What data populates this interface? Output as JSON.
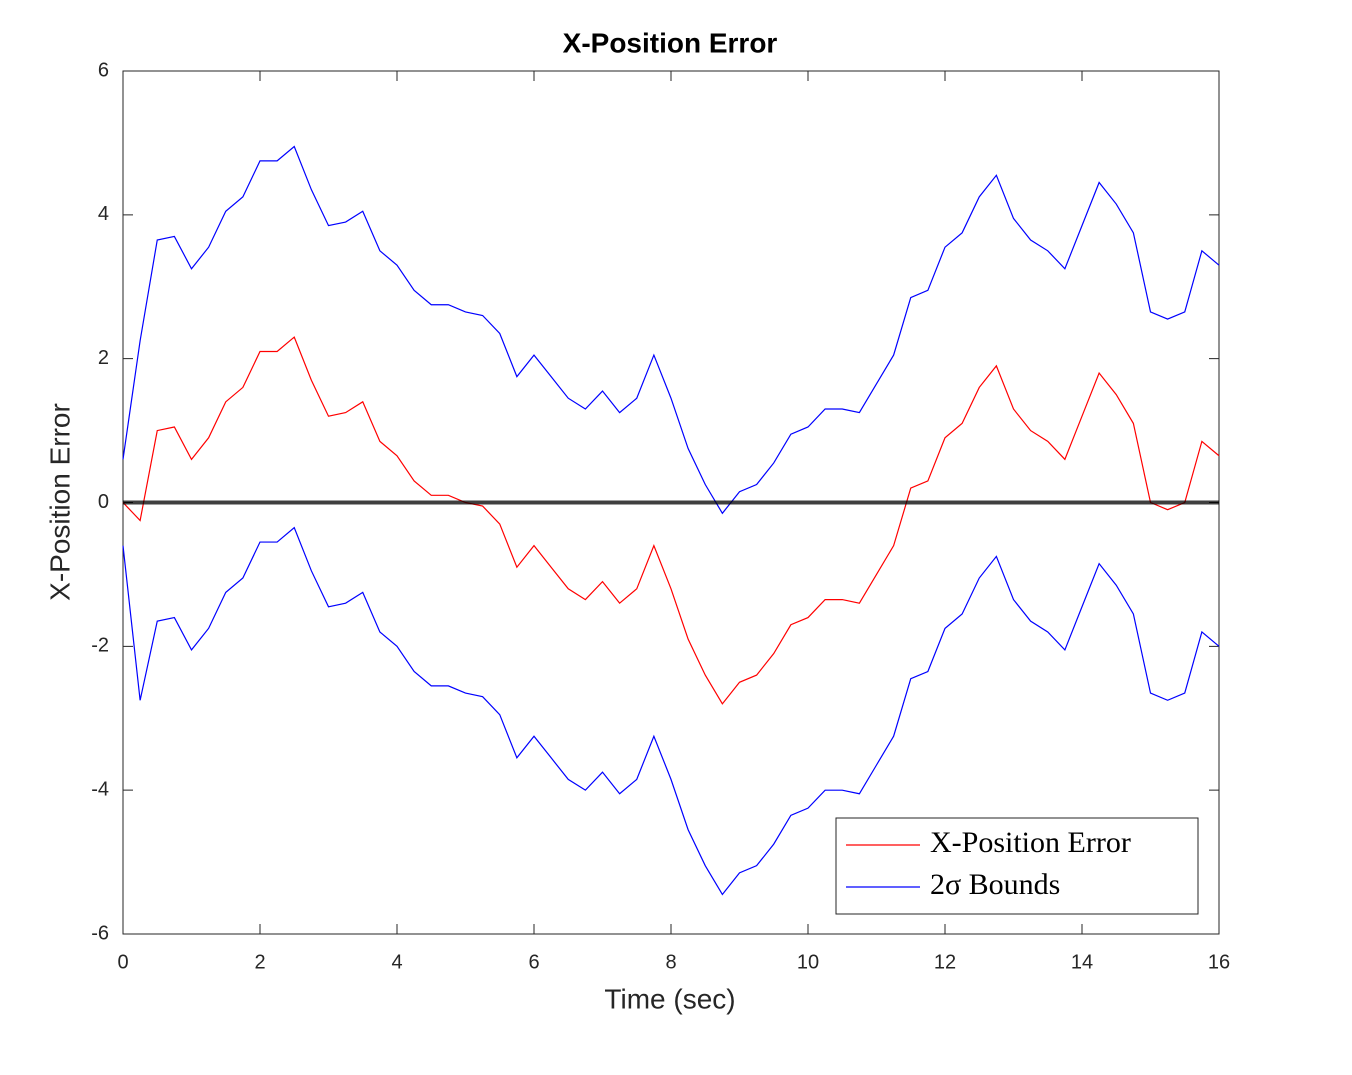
{
  "chart_data": {
    "type": "line",
    "title": "X-Position Error",
    "x_label": "Time (sec)",
    "y_label": "X-Position Error",
    "x": [
      0,
      0.25,
      0.5,
      0.75,
      1,
      1.25,
      1.5,
      1.75,
      2,
      2.25,
      2.5,
      2.75,
      3,
      3.25,
      3.5,
      3.75,
      4,
      4.25,
      4.5,
      4.75,
      5,
      5.25,
      5.5,
      5.75,
      6,
      6.25,
      6.5,
      6.75,
      7,
      7.25,
      7.5,
      7.75,
      8,
      8.25,
      8.5,
      8.75,
      9,
      9.25,
      9.5,
      9.75,
      10,
      10.25,
      10.5,
      10.75,
      11,
      11.25,
      11.5,
      11.75,
      12,
      12.25,
      12.5,
      12.75,
      13,
      13.25,
      13.5,
      13.75,
      14,
      14.25,
      14.5,
      14.75,
      15,
      15.25,
      15.5,
      15.75,
      16
    ],
    "series": [
      {
        "name": "X-Position Error",
        "color": "#ff0000",
        "values": [
          0,
          -0.25,
          1.0,
          1.05,
          0.6,
          0.9,
          1.4,
          1.6,
          2.1,
          2.1,
          2.3,
          1.7,
          1.2,
          1.25,
          1.4,
          0.85,
          0.65,
          0.3,
          0.1,
          0.1,
          0.0,
          -0.05,
          -0.3,
          -0.9,
          -0.6,
          -0.9,
          -1.2,
          -1.35,
          -1.1,
          -1.4,
          -1.2,
          -0.6,
          -1.2,
          -1.9,
          -2.4,
          -2.8,
          -2.5,
          -2.4,
          -2.1,
          -1.7,
          -1.6,
          -1.35,
          -1.35,
          -1.4,
          -1.0,
          -0.6,
          0.2,
          0.3,
          0.9,
          1.1,
          1.6,
          1.9,
          1.3,
          1.0,
          0.85,
          0.6,
          1.2,
          1.8,
          1.5,
          1.1,
          0.0,
          -0.1,
          0.0,
          0.85,
          0.65
        ]
      },
      {
        "name": "2σ Bounds",
        "color": "#0000ff",
        "values": [
          0.6,
          2.25,
          3.65,
          3.7,
          3.25,
          3.55,
          4.05,
          4.25,
          4.75,
          4.75,
          4.95,
          4.35,
          3.85,
          3.9,
          4.05,
          3.5,
          3.3,
          2.95,
          2.75,
          2.75,
          2.65,
          2.6,
          2.35,
          1.75,
          2.05,
          1.75,
          1.45,
          1.3,
          1.55,
          1.25,
          1.45,
          2.05,
          1.45,
          0.75,
          0.25,
          -0.15,
          0.15,
          0.25,
          0.55,
          0.95,
          1.05,
          1.3,
          1.3,
          1.25,
          1.65,
          2.05,
          2.85,
          2.95,
          3.55,
          3.75,
          4.25,
          4.55,
          3.95,
          3.65,
          3.5,
          3.25,
          3.85,
          4.45,
          4.15,
          3.75,
          2.65,
          2.55,
          2.65,
          3.5,
          3.3
        ],
        "lower": [
          -0.6,
          -2.75,
          -1.65,
          -1.6,
          -2.05,
          -1.75,
          -1.25,
          -1.05,
          -0.55,
          -0.55,
          -0.35,
          -0.95,
          -1.45,
          -1.4,
          -1.25,
          -1.8,
          -2.0,
          -2.35,
          -2.55,
          -2.55,
          -2.65,
          -2.7,
          -2.95,
          -3.55,
          -3.25,
          -3.55,
          -3.85,
          -4.0,
          -3.75,
          -4.05,
          -3.85,
          -3.25,
          -3.85,
          -4.55,
          -5.05,
          -5.45,
          -5.15,
          -5.05,
          -4.75,
          -4.35,
          -4.25,
          -4.0,
          -4.0,
          -4.05,
          -3.65,
          -3.25,
          -2.45,
          -2.35,
          -1.75,
          -1.55,
          -1.05,
          -0.75,
          -1.35,
          -1.65,
          -1.8,
          -2.05,
          -1.45,
          -0.85,
          -1.15,
          -1.55,
          -2.65,
          -2.75,
          -2.65,
          -1.8,
          -2.0
        ]
      }
    ],
    "hline": 0,
    "xlim": [
      0,
      16
    ],
    "xticks": [
      0,
      2,
      4,
      6,
      8,
      10,
      12,
      14,
      16
    ],
    "ylim": [
      -6,
      6
    ],
    "yticks": [
      -6,
      -4,
      -2,
      0,
      2,
      4,
      6
    ],
    "legend": "lower-right"
  }
}
